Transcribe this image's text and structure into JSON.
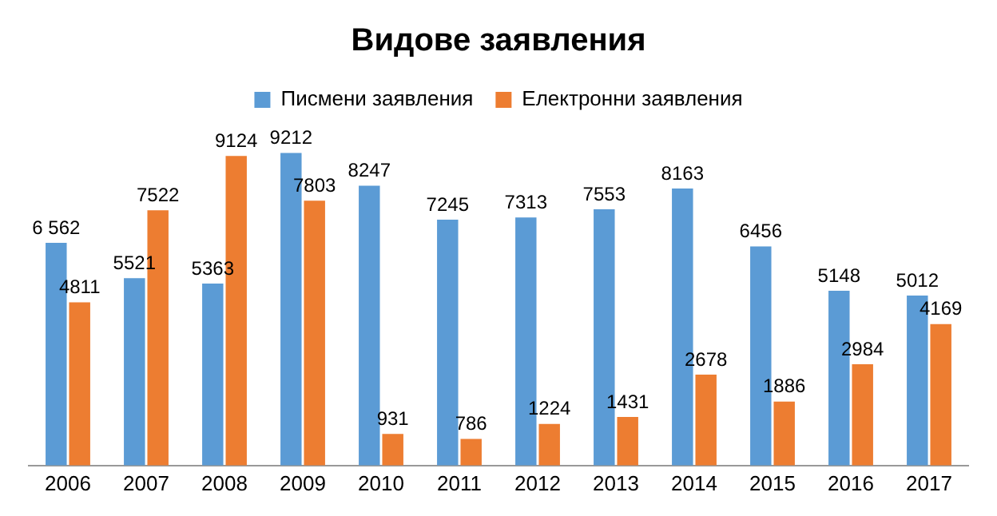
{
  "chart_data": {
    "type": "bar",
    "title": "Видове заявления",
    "categories": [
      "2006",
      "2007",
      "2008",
      "2009",
      "2010",
      "2011",
      "2012",
      "2013",
      "2014",
      "2015",
      "2016",
      "2017"
    ],
    "series": [
      {
        "name": "Писмени заявления",
        "color": "#5b9bd5",
        "values": [
          6562,
          5521,
          5363,
          9212,
          8247,
          7245,
          7313,
          7553,
          8163,
          6456,
          5148,
          5012
        ],
        "value_labels": [
          "6 562",
          "5521",
          "5363",
          "9212",
          "8247",
          "7245",
          "7313",
          "7553",
          "8163",
          "6456",
          "5148",
          "5012"
        ]
      },
      {
        "name": "Електронни заявления",
        "color": "#ed7d31",
        "values": [
          4811,
          7522,
          9124,
          7803,
          931,
          786,
          1224,
          1431,
          2678,
          1886,
          2984,
          4169
        ],
        "value_labels": [
          "4811",
          "7522",
          "9124",
          "7803",
          "931",
          "786",
          "1224",
          "1431",
          "2678",
          "1886",
          "2984",
          "4169"
        ]
      }
    ],
    "legend": "top",
    "grid": false,
    "tick_labels": "x"
  }
}
